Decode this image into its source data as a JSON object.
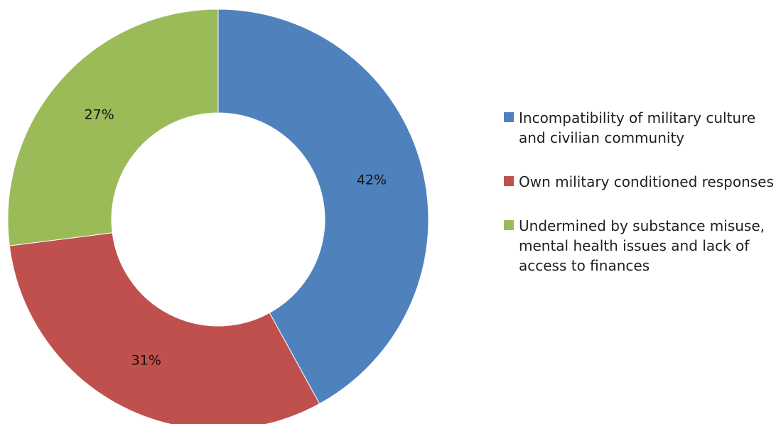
{
  "chart_data": {
    "type": "pie",
    "donut": true,
    "legend_position": "right",
    "slices": [
      {
        "label": "Incompatibility of military culture and civilian community",
        "value": 42,
        "display": "42%",
        "color": "#4F81BD"
      },
      {
        "label": "Own military conditioned responses",
        "value": 31,
        "display": "31%",
        "color": "#C0504D"
      },
      {
        "label": "Undermined by substance misuse, mental health issues and lack of access to finances",
        "value": 27,
        "display": "27%",
        "color": "#9BBB59"
      }
    ]
  }
}
